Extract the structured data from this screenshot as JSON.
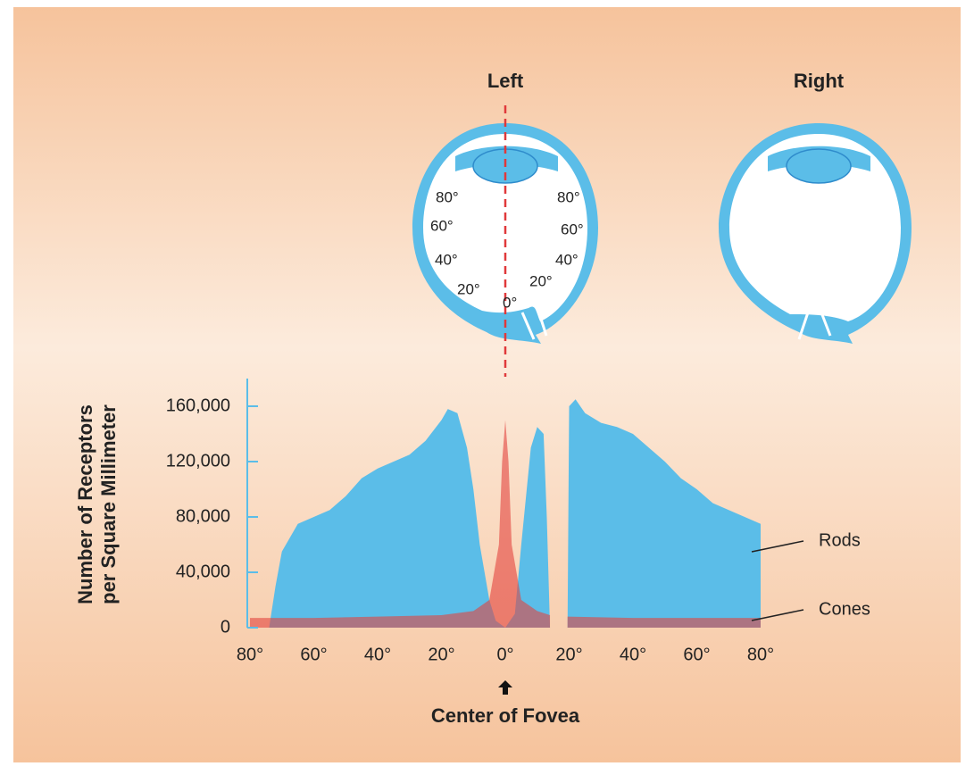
{
  "chart_data": {
    "type": "area",
    "ylabel": [
      "Number of Receptors",
      "per Square Millimeter"
    ],
    "annotation": "Center of Fovea",
    "xlim": [
      -80,
      80
    ],
    "xticks": [
      {
        "value": -80,
        "label": "80°"
      },
      {
        "value": -60,
        "label": "60°"
      },
      {
        "value": -40,
        "label": "40°"
      },
      {
        "value": -20,
        "label": "20°"
      },
      {
        "value": 0,
        "label": "0°"
      },
      {
        "value": 20,
        "label": "20°"
      },
      {
        "value": 40,
        "label": "40°"
      },
      {
        "value": 60,
        "label": "60°"
      },
      {
        "value": 80,
        "label": "80°"
      }
    ],
    "ylim": [
      0,
      180000
    ],
    "yticks": [
      0,
      {
        "value": 40000,
        "label": "40,000"
      },
      {
        "value": 80000,
        "label": "80,000"
      },
      {
        "value": 120000,
        "label": "120,000"
      },
      {
        "value": 160000,
        "label": "160,000"
      }
    ],
    "series": [
      {
        "name": "Rods",
        "color": "#5bbde8",
        "x": [
          -74,
          -72,
          -70,
          -65,
          -60,
          -55,
          -50,
          -45,
          -40,
          -35,
          -30,
          -25,
          -20,
          -18,
          -15,
          -12,
          -10,
          -8,
          -5,
          -3,
          0,
          3,
          5,
          8,
          10,
          12,
          13,
          14,
          16,
          19.5,
          20,
          22,
          25,
          30,
          35,
          40,
          45,
          50,
          55,
          60,
          65,
          70,
          75,
          80
        ],
        "values": [
          0,
          30000,
          55000,
          75000,
          80000,
          85000,
          95000,
          108000,
          115000,
          120000,
          125000,
          135000,
          150000,
          158000,
          155000,
          130000,
          100000,
          60000,
          20000,
          5000,
          0,
          10000,
          60000,
          130000,
          145000,
          140000,
          80000,
          0,
          null,
          0,
          160000,
          165000,
          155000,
          148000,
          145000,
          140000,
          130000,
          120000,
          108000,
          100000,
          90000,
          85000,
          80000,
          75000
        ]
      },
      {
        "name": "Cones",
        "color": "#e3423e",
        "x": [
          -80,
          -70,
          -60,
          -40,
          -20,
          -10,
          -5,
          -2,
          -1,
          0,
          1,
          2,
          5,
          10,
          14,
          16,
          19.5,
          40,
          60,
          80
        ],
        "values": [
          7000,
          7000,
          7000,
          8000,
          9000,
          12000,
          20000,
          60000,
          120000,
          150000,
          120000,
          60000,
          20000,
          12000,
          9000,
          null,
          8000,
          7000,
          7000,
          7000
        ]
      }
    ]
  },
  "diagram": {
    "left_eye": "Left",
    "right_eye": "Right",
    "angles": [
      "80°",
      "60°",
      "40°",
      "20°",
      "0°",
      "80°",
      "60°",
      "40°",
      "20°"
    ]
  }
}
